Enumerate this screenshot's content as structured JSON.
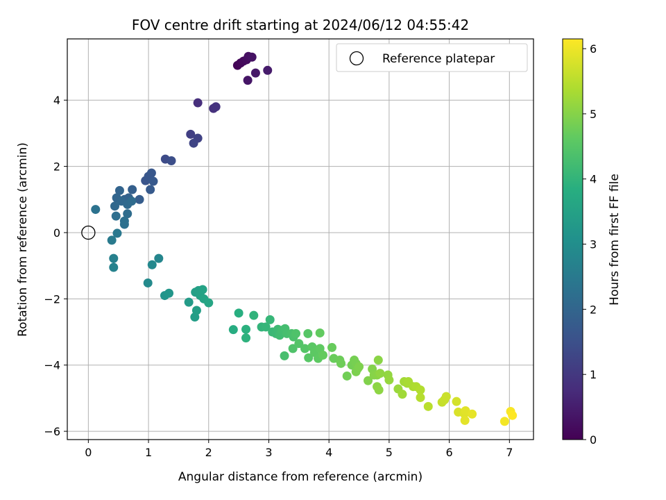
{
  "chart_data": {
    "type": "scatter",
    "title": "FOV centre drift starting at 2024/06/12 04:55:42",
    "xlabel": "Angular distance from reference (arcmin)",
    "ylabel": "Rotation from reference (arcmin)",
    "xlim": [
      -0.35,
      7.4
    ],
    "ylim": [
      -6.25,
      5.85
    ],
    "xticks": [
      0,
      1,
      2,
      3,
      4,
      5,
      6,
      7
    ],
    "yticks": [
      -6,
      -4,
      -2,
      0,
      2,
      4
    ],
    "grid": true,
    "legend": {
      "entries": [
        "Reference platepar"
      ],
      "placement": "top-right"
    },
    "reference_point": {
      "x": 0,
      "y": 0,
      "label": "Reference platepar"
    },
    "colorbar": {
      "label": "Hours from first FF file",
      "range": [
        0,
        6.15
      ],
      "ticks": [
        0,
        1,
        2,
        3,
        4,
        5,
        6
      ],
      "colormap": "viridis"
    },
    "points": [
      {
        "x": 2.48,
        "y": 5.05,
        "t": 0.05
      },
      {
        "x": 2.53,
        "y": 5.12,
        "t": 0.1
      },
      {
        "x": 2.58,
        "y": 5.18,
        "t": 0.15
      },
      {
        "x": 2.63,
        "y": 5.22,
        "t": 0.2
      },
      {
        "x": 2.66,
        "y": 5.32,
        "t": 0.25
      },
      {
        "x": 2.72,
        "y": 5.3,
        "t": 0.3
      },
      {
        "x": 2.65,
        "y": 4.6,
        "t": 0.35
      },
      {
        "x": 2.78,
        "y": 4.82,
        "t": 0.4
      },
      {
        "x": 2.98,
        "y": 4.9,
        "t": 0.45
      },
      {
        "x": 1.82,
        "y": 3.92,
        "t": 0.8
      },
      {
        "x": 2.08,
        "y": 3.75,
        "t": 0.85
      },
      {
        "x": 2.12,
        "y": 3.8,
        "t": 0.9
      },
      {
        "x": 1.7,
        "y": 2.97,
        "t": 1.15
      },
      {
        "x": 1.82,
        "y": 2.85,
        "t": 1.2
      },
      {
        "x": 1.75,
        "y": 2.7,
        "t": 1.25
      },
      {
        "x": 1.28,
        "y": 2.22,
        "t": 1.4
      },
      {
        "x": 1.38,
        "y": 2.17,
        "t": 1.45
      },
      {
        "x": 0.95,
        "y": 1.57,
        "t": 1.6
      },
      {
        "x": 1.0,
        "y": 1.7,
        "t": 1.63
      },
      {
        "x": 1.05,
        "y": 1.8,
        "t": 1.66
      },
      {
        "x": 1.08,
        "y": 1.55,
        "t": 1.7
      },
      {
        "x": 1.03,
        "y": 1.3,
        "t": 1.73
      },
      {
        "x": 0.85,
        "y": 1.0,
        "t": 1.8
      },
      {
        "x": 0.73,
        "y": 1.3,
        "t": 1.85
      },
      {
        "x": 0.67,
        "y": 1.05,
        "t": 1.9
      },
      {
        "x": 0.6,
        "y": 1.0,
        "t": 1.93
      },
      {
        "x": 0.52,
        "y": 1.27,
        "t": 1.96
      },
      {
        "x": 0.47,
        "y": 1.05,
        "t": 2.0
      },
      {
        "x": 0.55,
        "y": 0.95,
        "t": 2.03
      },
      {
        "x": 0.44,
        "y": 0.8,
        "t": 2.06
      },
      {
        "x": 0.65,
        "y": 0.85,
        "t": 2.1
      },
      {
        "x": 0.72,
        "y": 0.95,
        "t": 2.13
      },
      {
        "x": 0.65,
        "y": 0.57,
        "t": 2.16
      },
      {
        "x": 0.46,
        "y": 0.5,
        "t": 2.2
      },
      {
        "x": 0.6,
        "y": 0.35,
        "t": 2.23
      },
      {
        "x": 0.6,
        "y": 0.25,
        "t": 2.26
      },
      {
        "x": 0.12,
        "y": 0.7,
        "t": 2.3
      },
      {
        "x": 0.48,
        "y": -0.02,
        "t": 2.45
      },
      {
        "x": 0.39,
        "y": -0.23,
        "t": 2.5
      },
      {
        "x": 0.42,
        "y": -0.78,
        "t": 2.65
      },
      {
        "x": 0.42,
        "y": -1.05,
        "t": 2.7
      },
      {
        "x": 1.17,
        "y": -0.78,
        "t": 2.8
      },
      {
        "x": 1.06,
        "y": -0.97,
        "t": 2.85
      },
      {
        "x": 0.99,
        "y": -1.52,
        "t": 2.9
      },
      {
        "x": 1.27,
        "y": -1.9,
        "t": 3.15
      },
      {
        "x": 1.34,
        "y": -1.83,
        "t": 3.2
      },
      {
        "x": 1.67,
        "y": -2.1,
        "t": 3.35
      },
      {
        "x": 1.77,
        "y": -2.55,
        "t": 3.4
      },
      {
        "x": 1.8,
        "y": -2.35,
        "t": 3.43
      },
      {
        "x": 1.78,
        "y": -1.8,
        "t": 3.45
      },
      {
        "x": 1.83,
        "y": -1.75,
        "t": 3.48
      },
      {
        "x": 1.86,
        "y": -1.9,
        "t": 3.5
      },
      {
        "x": 1.9,
        "y": -1.72,
        "t": 3.53
      },
      {
        "x": 1.92,
        "y": -2.0,
        "t": 3.56
      },
      {
        "x": 2.0,
        "y": -2.12,
        "t": 3.6
      },
      {
        "x": 2.41,
        "y": -2.93,
        "t": 3.8
      },
      {
        "x": 2.5,
        "y": -2.43,
        "t": 3.85
      },
      {
        "x": 2.62,
        "y": -2.92,
        "t": 3.9
      },
      {
        "x": 2.62,
        "y": -3.18,
        "t": 3.93
      },
      {
        "x": 2.75,
        "y": -2.5,
        "t": 3.97
      },
      {
        "x": 2.88,
        "y": -2.85,
        "t": 4.0
      },
      {
        "x": 2.95,
        "y": -2.85,
        "t": 4.03
      },
      {
        "x": 3.02,
        "y": -2.63,
        "t": 4.06
      },
      {
        "x": 3.06,
        "y": -3.0,
        "t": 4.1
      },
      {
        "x": 3.12,
        "y": -3.05,
        "t": 4.13
      },
      {
        "x": 3.15,
        "y": -2.92,
        "t": 4.16
      },
      {
        "x": 3.18,
        "y": -3.1,
        "t": 4.2
      },
      {
        "x": 3.22,
        "y": -2.95,
        "t": 4.23
      },
      {
        "x": 3.27,
        "y": -2.9,
        "t": 4.26
      },
      {
        "x": 3.3,
        "y": -3.05,
        "t": 4.29
      },
      {
        "x": 3.26,
        "y": -3.72,
        "t": 4.3
      },
      {
        "x": 3.38,
        "y": -3.05,
        "t": 4.33
      },
      {
        "x": 3.41,
        "y": -3.15,
        "t": 4.36
      },
      {
        "x": 3.45,
        "y": -3.05,
        "t": 4.4
      },
      {
        "x": 3.4,
        "y": -3.5,
        "t": 4.42
      },
      {
        "x": 3.5,
        "y": -3.35,
        "t": 4.45
      },
      {
        "x": 3.6,
        "y": -3.5,
        "t": 4.48
      },
      {
        "x": 3.65,
        "y": -3.05,
        "t": 4.5
      },
      {
        "x": 3.66,
        "y": -3.78,
        "t": 4.52
      },
      {
        "x": 3.72,
        "y": -3.45,
        "t": 4.55
      },
      {
        "x": 3.76,
        "y": -3.62,
        "t": 4.58
      },
      {
        "x": 3.82,
        "y": -3.8,
        "t": 4.6
      },
      {
        "x": 3.85,
        "y": -3.5,
        "t": 4.62
      },
      {
        "x": 3.85,
        "y": -3.03,
        "t": 4.65
      },
      {
        "x": 3.9,
        "y": -3.7,
        "t": 4.67
      },
      {
        "x": 4.05,
        "y": -3.47,
        "t": 4.7
      },
      {
        "x": 4.08,
        "y": -3.8,
        "t": 4.72
      },
      {
        "x": 4.18,
        "y": -3.85,
        "t": 4.75
      },
      {
        "x": 4.2,
        "y": -3.95,
        "t": 4.77
      },
      {
        "x": 4.3,
        "y": -4.33,
        "t": 4.8
      },
      {
        "x": 4.38,
        "y": -4.0,
        "t": 4.82
      },
      {
        "x": 4.42,
        "y": -3.85,
        "t": 4.84
      },
      {
        "x": 4.45,
        "y": -3.95,
        "t": 4.86
      },
      {
        "x": 4.48,
        "y": -4.1,
        "t": 4.88
      },
      {
        "x": 4.45,
        "y": -4.2,
        "t": 4.9
      },
      {
        "x": 4.5,
        "y": -4.05,
        "t": 4.92
      },
      {
        "x": 4.65,
        "y": -4.47,
        "t": 4.95
      },
      {
        "x": 4.72,
        "y": -4.12,
        "t": 4.97
      },
      {
        "x": 4.75,
        "y": -4.3,
        "t": 5.0
      },
      {
        "x": 4.8,
        "y": -4.3,
        "t": 5.02
      },
      {
        "x": 4.82,
        "y": -3.85,
        "t": 5.04
      },
      {
        "x": 4.8,
        "y": -4.65,
        "t": 5.06
      },
      {
        "x": 4.83,
        "y": -4.75,
        "t": 5.08
      },
      {
        "x": 4.85,
        "y": -4.25,
        "t": 5.1
      },
      {
        "x": 4.98,
        "y": -4.3,
        "t": 5.12
      },
      {
        "x": 5.0,
        "y": -4.45,
        "t": 5.15
      },
      {
        "x": 5.15,
        "y": -4.72,
        "t": 5.2
      },
      {
        "x": 5.22,
        "y": -4.88,
        "t": 5.25
      },
      {
        "x": 5.25,
        "y": -4.5,
        "t": 5.28
      },
      {
        "x": 5.3,
        "y": -4.55,
        "t": 5.3
      },
      {
        "x": 5.32,
        "y": -4.5,
        "t": 5.33
      },
      {
        "x": 5.4,
        "y": -4.65,
        "t": 5.36
      },
      {
        "x": 5.45,
        "y": -4.65,
        "t": 5.4
      },
      {
        "x": 5.52,
        "y": -4.75,
        "t": 5.43
      },
      {
        "x": 5.52,
        "y": -4.98,
        "t": 5.46
      },
      {
        "x": 5.65,
        "y": -5.25,
        "t": 5.5
      },
      {
        "x": 5.88,
        "y": -5.12,
        "t": 5.6
      },
      {
        "x": 5.92,
        "y": -5.05,
        "t": 5.63
      },
      {
        "x": 5.95,
        "y": -4.95,
        "t": 5.66
      },
      {
        "x": 6.12,
        "y": -5.1,
        "t": 5.75
      },
      {
        "x": 6.15,
        "y": -5.42,
        "t": 5.8
      },
      {
        "x": 6.25,
        "y": -5.47,
        "t": 5.85
      },
      {
        "x": 6.27,
        "y": -5.38,
        "t": 5.88
      },
      {
        "x": 6.26,
        "y": -5.67,
        "t": 5.9
      },
      {
        "x": 6.38,
        "y": -5.48,
        "t": 5.93
      },
      {
        "x": 6.92,
        "y": -5.7,
        "t": 6.05
      },
      {
        "x": 7.02,
        "y": -5.4,
        "t": 6.1
      },
      {
        "x": 7.05,
        "y": -5.52,
        "t": 6.15
      }
    ]
  }
}
